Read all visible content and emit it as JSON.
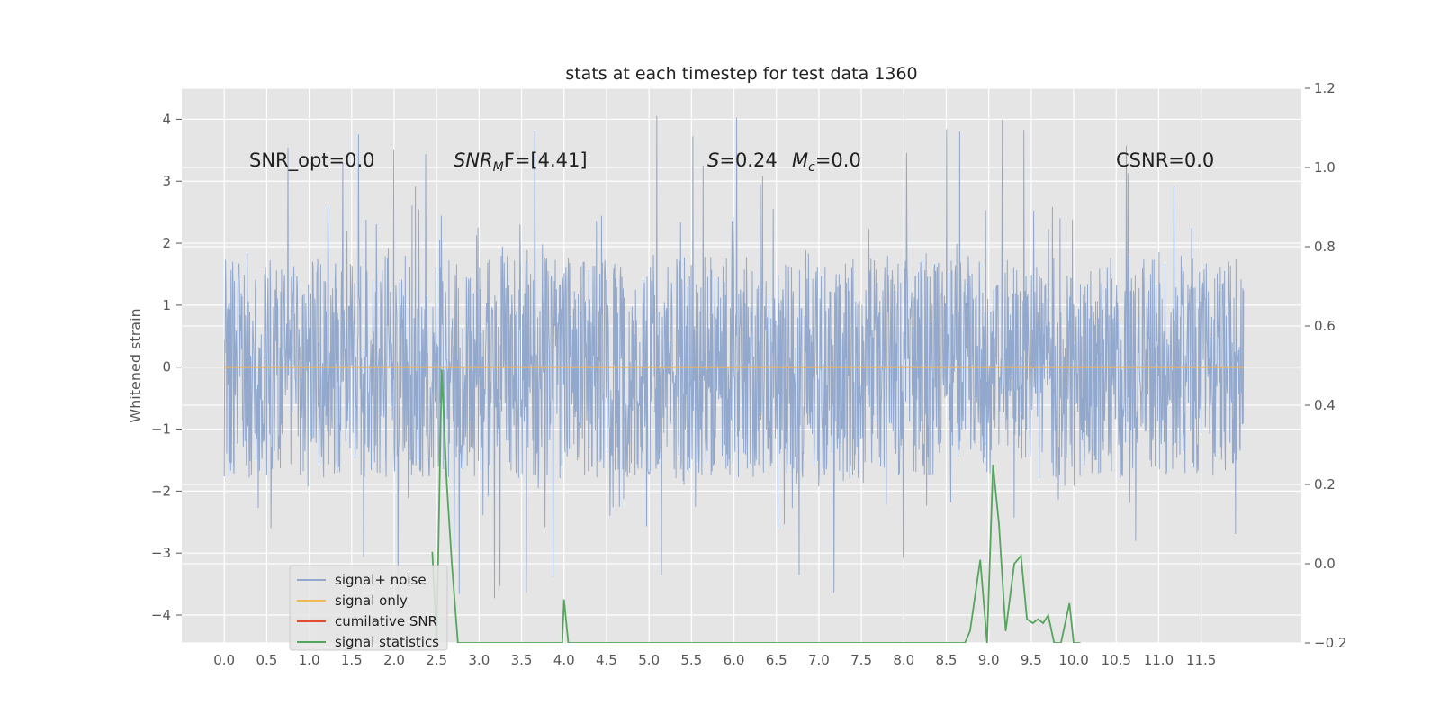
{
  "chart_data": {
    "type": "line",
    "title": "stats at each timestep for test data 1360",
    "xlabel": "",
    "ylabel": "Whitened strain",
    "y2label": "",
    "xlim": [
      -0.5,
      12.68
    ],
    "ylim": [
      -4.45,
      4.5
    ],
    "y2lim": [
      -0.2,
      1.2
    ],
    "grid": true,
    "background": "#e5e5e5",
    "x_ticks": [
      "0.0",
      "0.5",
      "1.0",
      "1.5",
      "2.0",
      "2.5",
      "3.0",
      "3.5",
      "4.0",
      "4.5",
      "5.0",
      "5.5",
      "6.0",
      "6.5",
      "7.0",
      "7.5",
      "8.0",
      "8.5",
      "9.0",
      "9.5",
      "10.0",
      "10.5",
      "11.0",
      "11.5"
    ],
    "y_ticks": [
      "4",
      "3",
      "2",
      "1",
      "0",
      "−1",
      "−2",
      "−3",
      "−4"
    ],
    "y2_ticks": [
      "1.2",
      "1.0",
      "0.8",
      "0.6",
      "0.4",
      "0.2",
      "0.0",
      "−0.2"
    ],
    "annotations": {
      "snr_opt": "SNR_opt=0.0",
      "snr_mf_name": "SNR",
      "snr_mf_sub": "M",
      "snr_mf_tail": "F=[4.41]",
      "s_name": "S",
      "s_value": "=0.24",
      "mc_name": "M",
      "mc_sub": "c",
      "mc_value": "=0.0",
      "csnr": "CSNR=0.0"
    },
    "legend": {
      "position": "lower-left",
      "entries": [
        "signal+ noise",
        "signal only",
        "cumilative SNR",
        "signal statistics"
      ]
    },
    "series": [
      {
        "name": "signal+ noise",
        "axis": "left",
        "color": "#92a8cd",
        "kind": "noise",
        "x_range": [
          0.0,
          12.0
        ],
        "typical_range": [
          -1.8,
          1.8
        ],
        "peak_max": 4.1,
        "peak_min": -3.8
      },
      {
        "name": "signal only",
        "axis": "left",
        "color": "#f0b755",
        "x": [
          0.0,
          12.0
        ],
        "y": [
          0.0,
          0.0
        ]
      },
      {
        "name": "cumilative SNR",
        "axis": "right",
        "color": "#e24a33",
        "x": [],
        "y": []
      },
      {
        "name": "signal statistics",
        "axis": "right",
        "color": "#56a55d",
        "x": [
          2.45,
          2.5,
          2.56,
          2.62,
          2.68,
          2.75,
          3.98,
          4.0,
          4.05,
          8.72,
          8.78,
          8.9,
          8.98,
          9.05,
          9.12,
          9.2,
          9.3,
          9.38,
          9.45,
          9.52,
          9.58,
          9.64,
          9.7,
          9.77,
          9.85,
          9.95,
          10.0,
          10.08
        ],
        "y": [
          0.03,
          -0.2,
          0.49,
          0.2,
          0.0,
          -0.2,
          -0.2,
          -0.09,
          -0.2,
          -0.2,
          -0.17,
          0.01,
          -0.2,
          0.25,
          0.1,
          -0.17,
          0.0,
          0.02,
          -0.14,
          -0.15,
          -0.14,
          -0.15,
          -0.13,
          -0.2,
          -0.2,
          -0.1,
          -0.2,
          -0.2
        ]
      }
    ]
  }
}
